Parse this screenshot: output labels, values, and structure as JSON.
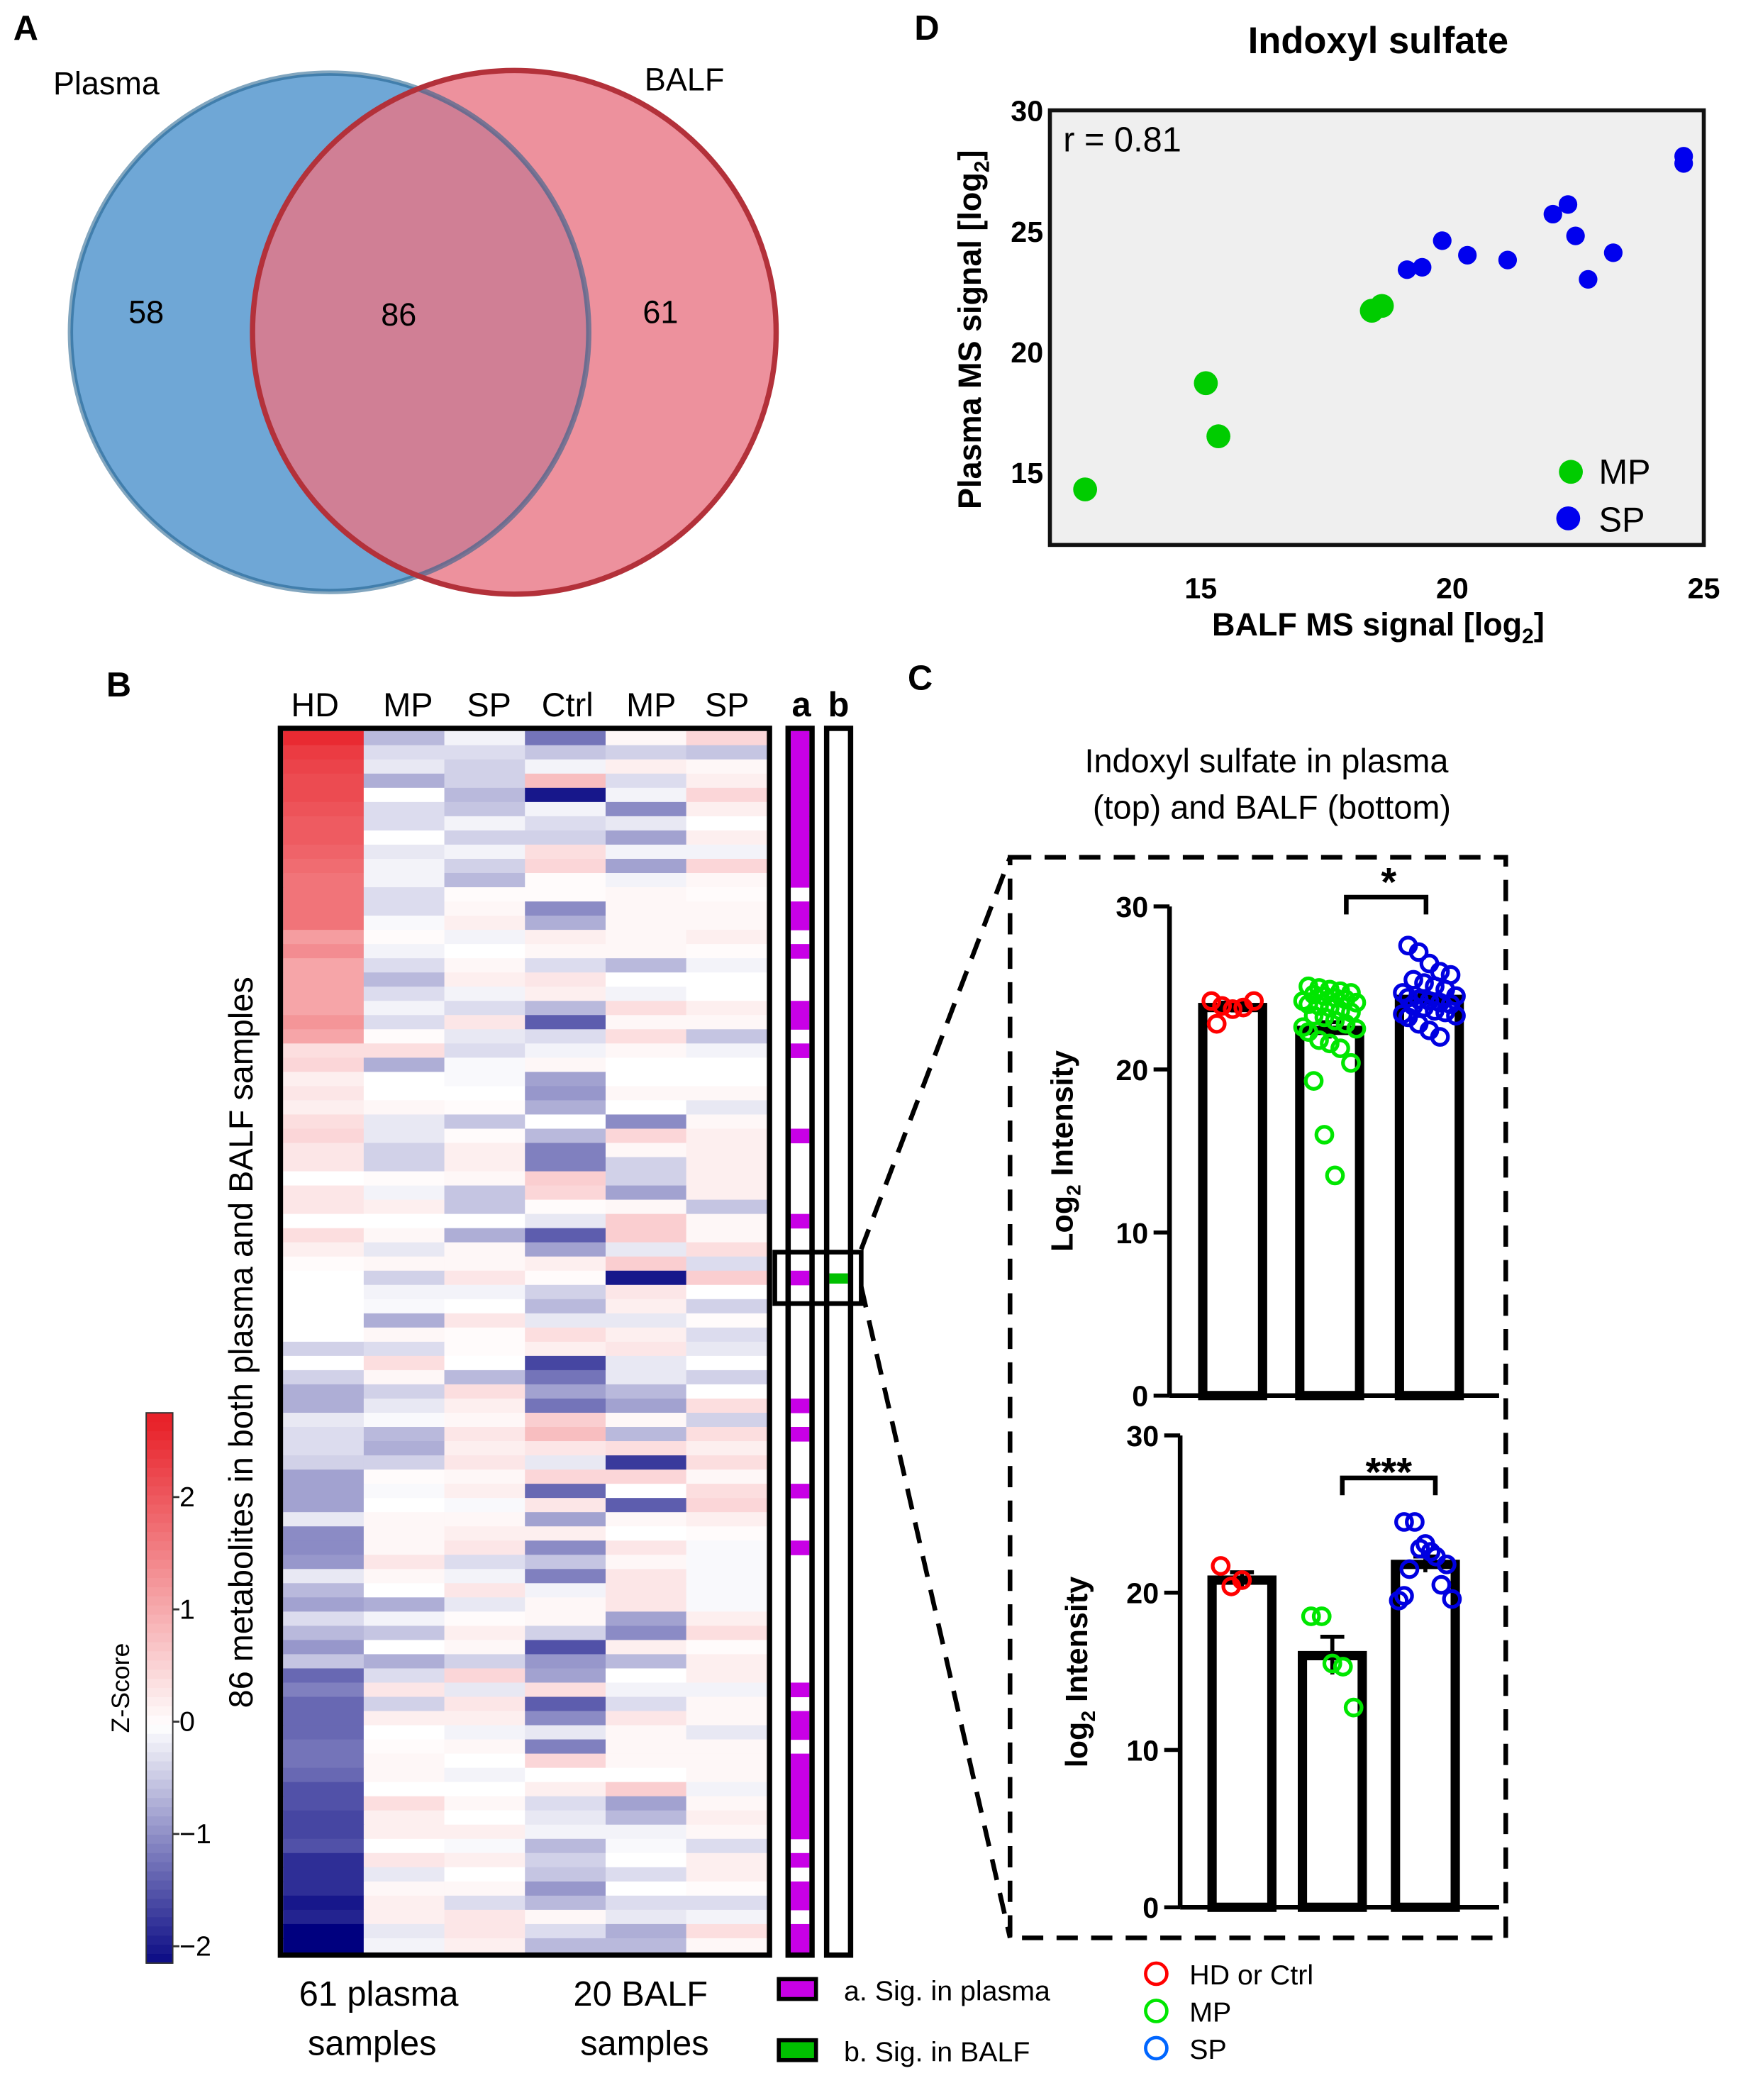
{
  "panels": {
    "a": "A",
    "b": "B",
    "c": "C",
    "d": "D"
  },
  "colors": {
    "plasma_blue": "#6fa7d6",
    "plasma_stroke": "#1b5c8a",
    "balf_red": "#e87585",
    "balf_stroke": "#b3313a",
    "hd": "#ff0000",
    "mp": "#00e600",
    "sp": "#0000e0",
    "scatter_mp": "#00cc00",
    "scatter_sp": "#0000ee",
    "sig_plasma": "#c800e6",
    "sig_balf": "#00c000",
    "heat_low": "#00007f",
    "heat_mid": "#ffffff",
    "heat_high": "#e8222a",
    "plot_bg": "#efefef"
  },
  "chart_data": [
    {
      "id": "venn",
      "type": "venn",
      "sets": [
        {
          "name": "Plasma",
          "only": 58
        },
        {
          "name": "BALF",
          "only": 61
        }
      ],
      "intersection": 86
    },
    {
      "id": "heatmap",
      "type": "heatmap",
      "columns": [
        "HD",
        "MP",
        "SP",
        "Ctrl",
        "MP",
        "SP"
      ],
      "sig_headers": [
        "a",
        "b"
      ],
      "ylabel": "86 metabolites in both plasma and BALF samples",
      "group_labels": [
        [
          "61 plasma",
          "samples"
        ],
        [
          "20 BALF",
          "samples"
        ]
      ],
      "colorbar": {
        "title": "Z-Score",
        "ticks": [
          2,
          1,
          0,
          -1,
          -2
        ],
        "range": [
          -2.15,
          2.75
        ]
      },
      "legend": [
        "a. Sig. in plasma",
        "b. Sig. in BALF"
      ],
      "values": [
        [
          2.6,
          -0.6,
          -0.1,
          -1.2,
          0.1,
          0.5
        ],
        [
          2.4,
          -0.3,
          -0.3,
          -0.5,
          -0.4,
          -0.5
        ],
        [
          2.3,
          -0.2,
          -0.4,
          -0.1,
          0.2,
          0.1
        ],
        [
          2.2,
          -0.7,
          -0.4,
          0.8,
          -0.3,
          0.2
        ],
        [
          2.2,
          0,
          -0.6,
          -2.0,
          -0.1,
          0.5
        ],
        [
          2.1,
          -0.3,
          -0.5,
          -0.1,
          -1.0,
          0.2
        ],
        [
          2.0,
          -0.3,
          -0.1,
          -0.3,
          -0.2,
          0
        ],
        [
          2.0,
          0,
          -0.4,
          -0.4,
          -0.8,
          0.2
        ],
        [
          1.9,
          -0.2,
          -0.1,
          0.4,
          -0.1,
          -0.1
        ],
        [
          1.8,
          -0.1,
          -0.4,
          0.5,
          -0.8,
          0.5
        ],
        [
          1.7,
          -0.1,
          -0.6,
          0.05,
          -0.1,
          0.1
        ],
        [
          1.7,
          -0.3,
          0.05,
          0.05,
          0.1,
          0.05
        ],
        [
          1.7,
          -0.3,
          0.1,
          -1.0,
          0.1,
          0.1
        ],
        [
          1.7,
          -0.05,
          0.2,
          -0.7,
          0.1,
          0.1
        ],
        [
          1.2,
          0.05,
          -0.1,
          0.2,
          0.1,
          0.2
        ],
        [
          1.4,
          -0.1,
          0,
          0.1,
          0.1,
          0.05
        ],
        [
          1.1,
          -0.3,
          0.1,
          -0.3,
          -0.6,
          -0.1
        ],
        [
          1.1,
          -0.6,
          0.2,
          0.3,
          0,
          0
        ],
        [
          1.1,
          -0.3,
          -0.1,
          0.2,
          -0.1,
          0
        ],
        [
          1.1,
          -0.1,
          -0.3,
          -0.6,
          0.4,
          0.2
        ],
        [
          1.3,
          -0.3,
          0.3,
          -1.4,
          0.1,
          0.1
        ],
        [
          1.1,
          0.05,
          -0.2,
          -0.3,
          0.4,
          -0.5
        ],
        [
          0.4,
          0.4,
          -0.3,
          -0.1,
          0.1,
          -0.1
        ],
        [
          0.5,
          -0.7,
          -0.05,
          0.1,
          0,
          0
        ],
        [
          0.2,
          0,
          -0.05,
          -0.8,
          0,
          0
        ],
        [
          0.3,
          0,
          0,
          -0.9,
          0.1,
          0.1
        ],
        [
          0.2,
          0.1,
          0.05,
          -0.7,
          0,
          -0.2
        ],
        [
          0.4,
          -0.2,
          -0.5,
          0,
          -1.0,
          0.1
        ],
        [
          0.5,
          -0.2,
          0.05,
          -0.6,
          0.5,
          0.2
        ],
        [
          0.3,
          -0.4,
          0.2,
          -1.1,
          0.1,
          0.2
        ],
        [
          0.3,
          -0.4,
          0.2,
          -1.1,
          -0.4,
          0.2
        ],
        [
          0,
          0.05,
          0.1,
          0.6,
          -0.4,
          0.2
        ],
        [
          0.3,
          -0.1,
          -0.5,
          0.5,
          -0.8,
          0.2
        ],
        [
          0.3,
          0.2,
          -0.5,
          0.05,
          0.1,
          -0.5
        ],
        [
          0,
          0,
          0,
          -0.2,
          0.6,
          0.1
        ],
        [
          0.4,
          0.1,
          -0.7,
          -1.4,
          0.6,
          0.1
        ],
        [
          0.2,
          -0.2,
          0.1,
          -0.8,
          -0.2,
          0.4
        ],
        [
          0.05,
          0.1,
          0.1,
          0.2,
          0.6,
          -0.3
        ],
        [
          0,
          -0.4,
          0.3,
          0.05,
          -2.0,
          0.6
        ],
        [
          0,
          -0.1,
          -0.1,
          -0.4,
          0.3,
          0
        ],
        [
          0,
          -0.05,
          0,
          -0.6,
          0.2,
          -0.4
        ],
        [
          0,
          -0.7,
          0.3,
          -0.2,
          -0.2,
          0.05
        ],
        [
          0,
          0.1,
          0.05,
          0.4,
          0.2,
          -0.3
        ],
        [
          -0.4,
          -0.3,
          0.05,
          0.2,
          0.3,
          -0.2
        ],
        [
          0,
          0.4,
          0,
          -1.6,
          -0.2,
          0
        ],
        [
          -0.4,
          0.1,
          -0.6,
          -1.2,
          -0.2,
          -0.4
        ],
        [
          -0.7,
          -0.4,
          0.4,
          -0.8,
          -0.6,
          0
        ],
        [
          -0.7,
          -0.2,
          0.2,
          -1.2,
          -0.8,
          0.4
        ],
        [
          -0.2,
          -0.05,
          0.1,
          0.6,
          0.1,
          -0.4
        ],
        [
          -0.3,
          -0.6,
          0.3,
          0.8,
          -0.6,
          0.4
        ],
        [
          -0.3,
          -0.7,
          0.2,
          0.3,
          0.4,
          0.2
        ],
        [
          -0.4,
          -0.4,
          0.3,
          -0.2,
          -1.7,
          0.4
        ],
        [
          -0.8,
          0.05,
          0.1,
          0.5,
          0.5,
          0.1
        ],
        [
          -0.8,
          -0.05,
          0.2,
          -1.3,
          0,
          0.4
        ],
        [
          -0.8,
          0,
          -0.05,
          0.3,
          -1.4,
          0.5
        ],
        [
          -0.2,
          0.1,
          0.1,
          -0.8,
          0.1,
          0.2
        ],
        [
          -1.0,
          0.1,
          0.2,
          0.2,
          0,
          0.05
        ],
        [
          -1.0,
          0.1,
          0.3,
          -1.0,
          0.3,
          -0.05
        ],
        [
          -0.9,
          0.3,
          -0.3,
          -0.5,
          0.1,
          -0.05
        ],
        [
          -0.2,
          0.1,
          -0.1,
          -1.1,
          0.3,
          -0.05
        ],
        [
          -0.6,
          0,
          0.3,
          -0.1,
          0.3,
          -0.05
        ],
        [
          -0.8,
          -0.7,
          -0.2,
          0.1,
          0.3,
          -0.05
        ],
        [
          -0.3,
          -0.1,
          0.05,
          0.1,
          -0.8,
          0.2
        ],
        [
          -0.6,
          -0.5,
          0.2,
          -0.4,
          -1.0,
          0.4
        ],
        [
          -0.9,
          0,
          0.1,
          -1.5,
          0.2,
          0.05
        ],
        [
          -0.5,
          -0.7,
          -0.4,
          -0.9,
          -0.6,
          0.2
        ],
        [
          -1.3,
          -0.3,
          0.5,
          -0.8,
          0,
          0.2
        ],
        [
          -1.1,
          0.3,
          -0.2,
          0.4,
          -0.1,
          -0.1
        ],
        [
          -1.3,
          -0.4,
          0.3,
          -1.4,
          -0.3,
          0.1
        ],
        [
          -1.3,
          0.2,
          0.2,
          -1.0,
          0.3,
          0.1
        ],
        [
          -1.3,
          0,
          -0.1,
          -0.2,
          0.1,
          -0.2
        ],
        [
          -1.2,
          0.05,
          0.1,
          -1.1,
          0.1,
          0.1
        ],
        [
          -1.2,
          0.1,
          0,
          0.5,
          0.1,
          0.1
        ],
        [
          -1.3,
          0.1,
          -0.1,
          0,
          0,
          0.1
        ],
        [
          -1.5,
          0,
          0,
          0.2,
          0.6,
          -0.1
        ],
        [
          -1.5,
          0.4,
          0.1,
          -0.3,
          -0.8,
          0.1
        ],
        [
          -1.6,
          0.2,
          0,
          -0.2,
          -0.6,
          0.2
        ],
        [
          -1.6,
          0.2,
          0.2,
          -0.1,
          -0.1,
          0.1
        ],
        [
          -1.5,
          0,
          -0.05,
          -0.6,
          -0.05,
          -0.3
        ],
        [
          -1.8,
          0.3,
          0.2,
          -0.4,
          0,
          0.2
        ],
        [
          -1.8,
          -0.2,
          0,
          -0.5,
          -0.3,
          0.2
        ],
        [
          -1.8,
          0.1,
          0.1,
          -0.9,
          0,
          0.05
        ],
        [
          -2.0,
          0.2,
          -0.3,
          -0.6,
          -0.3,
          -0.3
        ],
        [
          -1.9,
          0.2,
          0.3,
          0.1,
          -0.2,
          -0.1
        ],
        [
          -2.2,
          -0.2,
          0.3,
          -0.3,
          -0.7,
          0.4
        ],
        [
          -2.3,
          -0.1,
          0.2,
          -0.6,
          -0.6,
          0.1
        ]
      ],
      "sig_plasma_rows": [
        0,
        1,
        2,
        3,
        4,
        5,
        6,
        7,
        8,
        9,
        10,
        12,
        13,
        15,
        19,
        20,
        22,
        28,
        34,
        38,
        47,
        49,
        53,
        57,
        67,
        69,
        70,
        72,
        73,
        74,
        75,
        76,
        77,
        79,
        81,
        82,
        84,
        85
      ],
      "sig_balf_rows": [
        38
      ],
      "highlight_row": 38
    },
    {
      "id": "scatter",
      "type": "scatter",
      "title": "Indoxyl sulfate",
      "xlabel": {
        "main": "BALF MS signal [log",
        "sub": "2",
        "rest": "]"
      },
      "ylabel": {
        "main": "Plasma MS signal [log",
        "sub": "2",
        "rest": "]"
      },
      "xlim": [
        12,
        25
      ],
      "ylim": [
        12,
        30
      ],
      "xticks": [
        15,
        20,
        25
      ],
      "yticks": [
        15,
        20,
        25,
        30
      ],
      "annotation": "r = 0.81",
      "legend_position": "bottom-right",
      "series": [
        {
          "name": "MP",
          "points": [
            [
              12.7,
              14.3
            ],
            [
              15.1,
              18.7
            ],
            [
              15.35,
              16.5
            ],
            [
              18.4,
              21.7
            ],
            [
              18.6,
              21.9
            ]
          ]
        },
        {
          "name": "SP",
          "points": [
            [
              19.1,
              23.4
            ],
            [
              19.4,
              23.5
            ],
            [
              19.8,
              24.6
            ],
            [
              20.3,
              24.0
            ],
            [
              21.1,
              23.8
            ],
            [
              22.0,
              25.7
            ],
            [
              22.3,
              26.1
            ],
            [
              22.45,
              24.8
            ],
            [
              22.7,
              23.0
            ],
            [
              23.2,
              24.1
            ],
            [
              24.6,
              28.1
            ],
            [
              24.6,
              27.8
            ]
          ]
        }
      ]
    },
    {
      "id": "bar-plasma",
      "type": "bar",
      "title": [
        "Indoxyl sulfate in plasma",
        "(top) and BALF (bottom)"
      ],
      "ylabel": {
        "main": "Log",
        "sub": "2",
        "rest": " Intensity"
      },
      "ylim": [
        0,
        30
      ],
      "yticks": [
        0,
        10,
        20,
        30
      ],
      "significance": "*",
      "groups": [
        {
          "name": "HD or Ctrl",
          "mean": 23.8,
          "sem": 0.3,
          "points": [
            24.2,
            23.9,
            23.7,
            23.8,
            24.2,
            22.8
          ]
        },
        {
          "name": "MP",
          "mean": 22.4,
          "sem": 0.5,
          "points": [
            25.1,
            25.0,
            24.9,
            24.8,
            24.7,
            24.6,
            24.5,
            24.4,
            24.3,
            24.2,
            24.1,
            24.0,
            23.9,
            23.8,
            23.6,
            23.5,
            23.3,
            23.2,
            23.0,
            22.8,
            22.6,
            22.5,
            22.3,
            21.8,
            21.6,
            21.3,
            20.4,
            19.3,
            16.0,
            13.5
          ]
        },
        {
          "name": "SP",
          "mean": 24.3,
          "sem": 0.3,
          "points": [
            27.6,
            27.2,
            26.5,
            26.0,
            25.8,
            25.5,
            25.3,
            25.1,
            24.9,
            24.7,
            24.5,
            24.4,
            24.3,
            24.2,
            24.1,
            24.0,
            23.9,
            23.8,
            23.6,
            23.5,
            23.4,
            23.3,
            23.2,
            22.8,
            22.4,
            22.0
          ]
        }
      ]
    },
    {
      "id": "bar-balf",
      "type": "bar",
      "ylabel": {
        "main": "log",
        "sub": "2",
        "rest": " Intensity"
      },
      "ylim": [
        0,
        30
      ],
      "yticks": [
        0,
        10,
        20,
        30
      ],
      "significance": "***",
      "groups": [
        {
          "name": "HD or Ctrl",
          "mean": 20.8,
          "sem": 0.5,
          "points": [
            21.7,
            20.4,
            20.8
          ]
        },
        {
          "name": "MP",
          "mean": 16.0,
          "sem": 1.2,
          "points": [
            18.5,
            18.5,
            15.5,
            15.3,
            12.7
          ]
        },
        {
          "name": "SP",
          "mean": 21.8,
          "sem": 0.5,
          "points": [
            24.5,
            24.5,
            23.1,
            22.3,
            21.8,
            21.5,
            22.8,
            22.6,
            20.5,
            19.5,
            19.6,
            19.8
          ]
        }
      ]
    }
  ],
  "group_legend": [
    "HD or Ctrl",
    "MP",
    "SP"
  ]
}
